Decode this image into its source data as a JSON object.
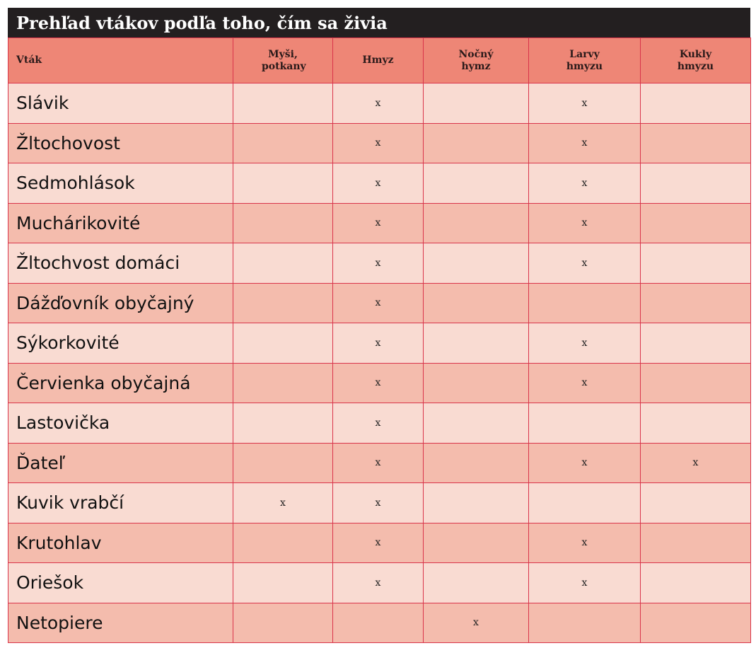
{
  "title": "Prehľad vtákov podľa toho, čím sa živia",
  "columns": [
    "Vták",
    "Myši, potkany",
    "Hmyz",
    "Nočný hymz",
    "Larvy hmyzu",
    "Kukly hmyzu"
  ],
  "colors": {
    "title_bg": "#231f20",
    "header_bg": "#ee8676",
    "row_light": "#f9dbd2",
    "row_dark": "#f4bcad",
    "border": "#d9344a"
  },
  "rows": [
    [
      "Slávik",
      "",
      "x",
      "",
      "x",
      ""
    ],
    [
      "Žltochovost",
      "",
      "x",
      "",
      "x",
      ""
    ],
    [
      "Sedmohlások",
      "",
      "x",
      "",
      "x",
      ""
    ],
    [
      "Muchárikovité",
      "",
      "x",
      "",
      "x",
      ""
    ],
    [
      "Žltochvost domáci",
      "",
      "x",
      "",
      "x",
      ""
    ],
    [
      "Dážďovník obyčajný",
      "",
      "x",
      "",
      "",
      ""
    ],
    [
      "Sýkorkovité",
      "",
      "x",
      "",
      "x",
      ""
    ],
    [
      "Červienka obyčajná",
      "",
      "x",
      "",
      "x",
      ""
    ],
    [
      "Lastovička",
      "",
      "x",
      "",
      "",
      ""
    ],
    [
      "Ďateľ",
      "",
      "x",
      "",
      "x",
      "x"
    ],
    [
      "Kuvik vrabčí",
      "x",
      "x",
      "",
      "",
      ""
    ],
    [
      "Krutohlav",
      "",
      "x",
      "",
      "x",
      ""
    ],
    [
      "Oriešok",
      "",
      "x",
      "",
      "x",
      ""
    ],
    [
      "Netopiere",
      "",
      "",
      "x",
      "",
      ""
    ]
  ]
}
